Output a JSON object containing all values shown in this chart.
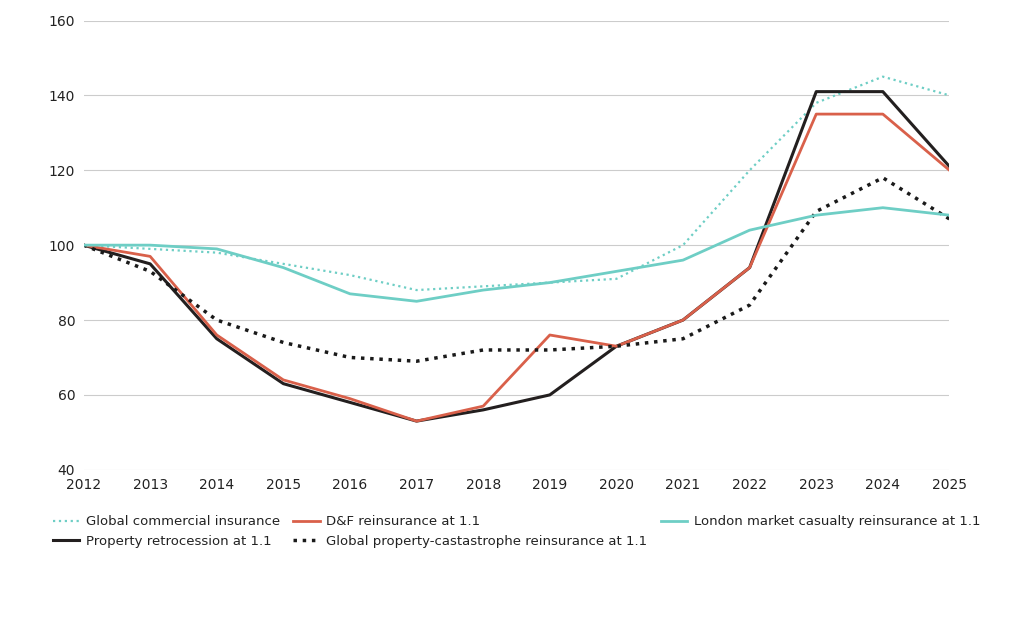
{
  "years": [
    2012,
    2013,
    2014,
    2015,
    2016,
    2017,
    2018,
    2019,
    2020,
    2021,
    2022,
    2023,
    2024,
    2025
  ],
  "global_commercial": [
    100,
    99,
    98,
    95,
    92,
    88,
    89,
    90,
    91,
    100,
    120,
    138,
    145,
    140
  ],
  "property_retrocession": [
    100,
    95,
    75,
    63,
    58,
    53,
    56,
    60,
    73,
    80,
    94,
    141,
    141,
    121
  ],
  "dnf_reinsurance": [
    100,
    97,
    76,
    64,
    59,
    53,
    57,
    76,
    73,
    80,
    94,
    135,
    135,
    120
  ],
  "global_property_cat": [
    100,
    93,
    80,
    74,
    70,
    69,
    72,
    72,
    73,
    75,
    84,
    109,
    118,
    107
  ],
  "london_market_casualty": [
    100,
    100,
    99,
    94,
    87,
    85,
    88,
    90,
    93,
    96,
    104,
    108,
    110,
    108
  ],
  "series_labels": [
    "Global commercial insurance",
    "Property retrocession at 1.1",
    "D&F reinsurance at 1.1",
    "Global property-castastrophe reinsurance at 1.1",
    "London market casualty reinsurance at 1.1"
  ],
  "color_commercial": "#6ecec5",
  "color_retrocession": "#231f1f",
  "color_dnf": "#d9604a",
  "color_prop_cat": "#1a1a1a",
  "color_london": "#6ecec5",
  "ylim": [
    40,
    160
  ],
  "yticks": [
    40,
    60,
    80,
    100,
    120,
    140,
    160
  ],
  "background_color": "#ffffff",
  "grid_color": "#cccccc"
}
